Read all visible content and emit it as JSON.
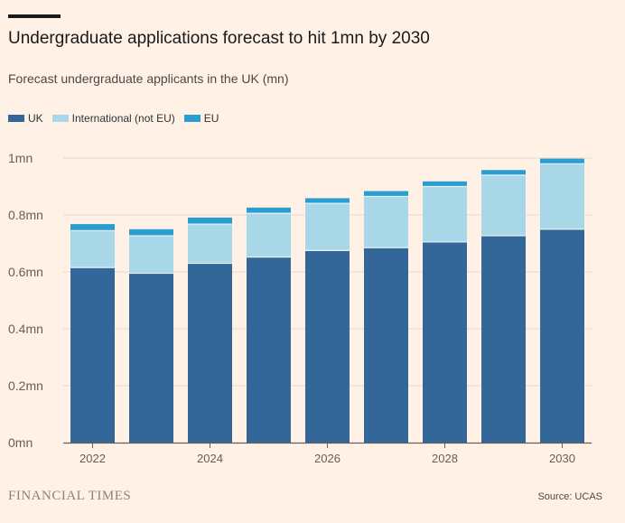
{
  "header": {
    "title": "Undergraduate applications forecast to hit 1mn by 2030",
    "subtitle": "Forecast undergraduate applicants in the UK (mn)"
  },
  "footer": {
    "brand": "FINANCIAL TIMES",
    "source": "Source: UCAS"
  },
  "colors": {
    "background": "#fff1e5",
    "uk": "#336699",
    "international": "#a8d8e8",
    "eu": "#2b9ed1",
    "grid": "#e6d9ce",
    "axis": "#66605c"
  },
  "chart_data": {
    "type": "bar",
    "stacked": true,
    "title": "Undergraduate applications forecast to hit 1mn by 2030",
    "subtitle": "Forecast undergraduate applicants in the UK (mn)",
    "categories": [
      "2022",
      "2023",
      "2024",
      "2025",
      "2026",
      "2027",
      "2028",
      "2029",
      "2030"
    ],
    "x_tick_labels": [
      "2022",
      "",
      "2024",
      "",
      "2026",
      "",
      "2028",
      "",
      "2030"
    ],
    "series": [
      {
        "name": "UK",
        "color": "#336699",
        "values": [
          0.615,
          0.595,
          0.63,
          0.652,
          0.675,
          0.685,
          0.705,
          0.727,
          0.75
        ]
      },
      {
        "name": "International (not EU)",
        "color": "#a8d8e8",
        "values": [
          0.13,
          0.132,
          0.138,
          0.154,
          0.166,
          0.18,
          0.195,
          0.213,
          0.23
        ]
      },
      {
        "name": "EU",
        "color": "#2b9ed1",
        "values": [
          0.023,
          0.023,
          0.023,
          0.02,
          0.018,
          0.019,
          0.018,
          0.018,
          0.018
        ]
      }
    ],
    "ylim": [
      0,
      1.0
    ],
    "y_ticks": [
      0,
      0.2,
      0.4,
      0.6,
      0.8,
      1.0
    ],
    "y_tick_labels": [
      "0mn",
      "0.2mn",
      "0.4mn",
      "0.6mn",
      "0.8mn",
      "1mn"
    ],
    "xlabel": "",
    "ylabel": "",
    "grid": true,
    "legend_position": "top-left"
  }
}
